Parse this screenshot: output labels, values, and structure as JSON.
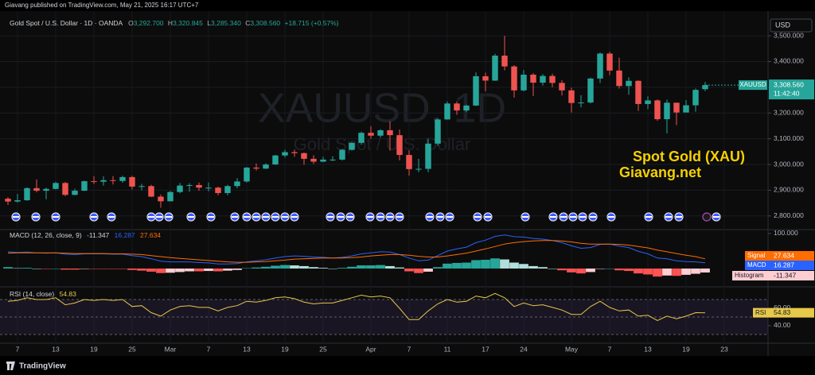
{
  "publish_note": "Giavang published on TradingView.com, May 21, 2025 16:17 UTC+7",
  "footer": "TradingView",
  "chart_data": [
    {
      "type": "candlestick",
      "title": "Gold Spot / U.S. Dollar · 1D · OANDA",
      "ohlc": [
        {
          "key": "O",
          "value": 3292.7,
          "label": "3,292.700"
        },
        {
          "key": "H",
          "value": 3320.845,
          "label": "3,320.845"
        },
        {
          "key": "L",
          "value": 3285.34,
          "label": "3,285.340"
        },
        {
          "key": "C",
          "value": 3308.56,
          "label": "3,308.560"
        }
      ],
      "change": "+18.715 (+0.57%)",
      "watermark": [
        "XAUUSD, 1D",
        "Gold Spot / U.S. Dollar"
      ],
      "annotations": [
        "Spot Gold (XAU)",
        "Giavang.net"
      ],
      "currency": "USD",
      "symbol": "XAUUSD",
      "last_price": {
        "value": 3308.56,
        "label": "3,308.560"
      },
      "countdown": "11:42:40",
      "up_color": "#26a69a",
      "down_color": "#ef5350",
      "grid": true,
      "xlim": [
        -0.5,
        79.5
      ],
      "xticks": [
        {
          "value": 1,
          "label": "7"
        },
        {
          "value": 5,
          "label": "13"
        },
        {
          "value": 9,
          "label": "19"
        },
        {
          "value": 13,
          "label": "25"
        },
        {
          "value": 17,
          "label": "Mar"
        },
        {
          "value": 21,
          "label": "7"
        },
        {
          "value": 25,
          "label": "13"
        },
        {
          "value": 29,
          "label": "19"
        },
        {
          "value": 33,
          "label": "25"
        },
        {
          "value": 38,
          "label": "Apr"
        },
        {
          "value": 42,
          "label": "7"
        },
        {
          "value": 46,
          "label": "11"
        },
        {
          "value": 50,
          "label": "17"
        },
        {
          "value": 54,
          "label": "24"
        },
        {
          "value": 59,
          "label": "May"
        },
        {
          "value": 63,
          "label": "7"
        },
        {
          "value": 67,
          "label": "13"
        },
        {
          "value": 71,
          "label": "19"
        },
        {
          "value": 75,
          "label": "23"
        }
      ],
      "ylim": [
        2750,
        3596
      ],
      "yticks": [
        {
          "value": 3500,
          "label": "3,500.000"
        },
        {
          "value": 3400,
          "label": "3,400.000"
        },
        {
          "value": 3300,
          "label": "3,300.000"
        },
        {
          "value": 3200,
          "label": "3,200.000"
        },
        {
          "value": 3100,
          "label": "3,100.000"
        },
        {
          "value": 3000,
          "label": "3,000.000"
        },
        {
          "value": 2900,
          "label": "2,900.000"
        },
        {
          "value": 2800,
          "label": "2,800.000"
        }
      ],
      "open": [
        2867,
        2856,
        2861,
        2908,
        2898,
        2905,
        2928,
        2882,
        2898,
        2935,
        2933,
        2939,
        2936,
        2951,
        2914,
        2916,
        2875,
        2857,
        2893,
        2918,
        2920,
        2910,
        2910,
        2889,
        2916,
        2934,
        2988,
        2984,
        3000,
        3035,
        3048,
        3044,
        3022,
        3011,
        3019,
        3019,
        3057,
        3084,
        3123,
        3112,
        3133,
        3114,
        3037,
        2982,
        2983,
        3081,
        3175,
        3237,
        3210,
        3229,
        3343,
        3326,
        3423,
        3381,
        3288,
        3349,
        3318,
        3344,
        3317,
        3288,
        3239,
        3241,
        3334,
        3431,
        3365,
        3305,
        3325,
        3235,
        3249,
        3176,
        3240,
        3202,
        3230,
        3292.7
      ],
      "high": [
        2873,
        2886,
        2911,
        2942,
        2910,
        2933,
        2932,
        2906,
        2937,
        2955,
        2954,
        2955,
        2956,
        2956,
        2925,
        2921,
        2883,
        2897,
        2928,
        2927,
        2930,
        2930,
        2914,
        2921,
        2947,
        2990,
        3004,
        3005,
        3038,
        3057,
        3058,
        3047,
        3036,
        3030,
        3032,
        3060,
        3087,
        3128,
        3149,
        3137,
        3168,
        3136,
        3055,
        3022,
        3100,
        3180,
        3245,
        3245,
        3232,
        3358,
        3357,
        3430,
        3500,
        3386,
        3367,
        3355,
        3351,
        3353,
        3328,
        3299,
        3269,
        3337,
        3435,
        3438,
        3415,
        3339,
        3327,
        3265,
        3253,
        3252,
        3240,
        3250,
        3295,
        3320.845
      ],
      "low": [
        2843,
        2852,
        2859,
        2892,
        2865,
        2903,
        2877,
        2880,
        2897,
        2924,
        2918,
        2922,
        2929,
        2903,
        2900,
        2873,
        2832,
        2857,
        2888,
        2894,
        2898,
        2896,
        2880,
        2880,
        2907,
        2930,
        2976,
        2982,
        2999,
        3027,
        3030,
        2999,
        3002,
        3009,
        3013,
        3015,
        3054,
        3076,
        3100,
        3105,
        3054,
        3016,
        2957,
        2970,
        2970,
        3073,
        3174,
        3193,
        3203,
        3228,
        3284,
        3325,
        3366,
        3260,
        3284,
        3266,
        3307,
        3300,
        3268,
        3202,
        3222,
        3237,
        3317,
        3347,
        3295,
        3271,
        3208,
        3215,
        3170,
        3121,
        3153,
        3205,
        3205,
        3285.34
      ],
      "close": [
        2856,
        2861,
        2908,
        2898,
        2905,
        2928,
        2882,
        2898,
        2935,
        2933,
        2939,
        2936,
        2951,
        2914,
        2916,
        2875,
        2857,
        2893,
        2918,
        2920,
        2910,
        2910,
        2889,
        2916,
        2934,
        2988,
        2984,
        3000,
        3035,
        3048,
        3044,
        3022,
        3011,
        3019,
        3019,
        3057,
        3084,
        3123,
        3112,
        3133,
        3114,
        3037,
        2982,
        2983,
        3081,
        3175,
        3237,
        3210,
        3229,
        3343,
        3326,
        3423,
        3381,
        3288,
        3349,
        3318,
        3344,
        3317,
        3288,
        3239,
        3241,
        3334,
        3431,
        3365,
        3305,
        3325,
        3235,
        3249,
        3176,
        3240,
        3202,
        3230,
        3289.845,
        3308.56
      ]
    },
    {
      "type": "macd",
      "title": "MACD (12, 26, close, 9)",
      "xlim": [
        -0.5,
        79.5
      ],
      "ylim": [
        -50,
        109
      ],
      "yticks": [
        {
          "value": 100,
          "label": "100.000"
        }
      ],
      "series": [
        {
          "name": "Histogram",
          "colors": [
            "#26a69a",
            "#b2dfdb",
            "#ff5252",
            "#ffcdd2"
          ],
          "values": [
            4,
            1,
            2,
            0,
            -1,
            0,
            -3,
            -3,
            -1,
            -1,
            -1,
            -1,
            -1,
            -4,
            -6,
            -9,
            -13,
            -12,
            -10,
            -8,
            -8,
            -7,
            -8,
            -6,
            -4,
            1,
            3,
            5,
            8,
            10,
            9,
            7,
            4,
            2,
            0,
            2,
            5,
            9,
            9,
            10,
            7,
            3,
            -8,
            -13,
            -9,
            4,
            14,
            16,
            17,
            24,
            25,
            29,
            26,
            17,
            13,
            7,
            4,
            0,
            -5,
            -11,
            -14,
            -10,
            -1,
            0,
            -5,
            -7,
            -14,
            -17,
            -23,
            -20,
            -21,
            -18,
            -15,
            -11.347
          ]
        },
        {
          "name": "MACD",
          "color": "#2962ff",
          "values": [
            48,
            46,
            47,
            45,
            44,
            45,
            41,
            40,
            42,
            42,
            42,
            41,
            41,
            37,
            34,
            28,
            21,
            19,
            19,
            19,
            17,
            16,
            13,
            13,
            14,
            19,
            22,
            25,
            30,
            34,
            36,
            35,
            33,
            32,
            30,
            32,
            36,
            42,
            45,
            48,
            47,
            40,
            30,
            22,
            24,
            37,
            50,
            56,
            61,
            74,
            81,
            92,
            96,
            91,
            90,
            86,
            84,
            80,
            74,
            65,
            58,
            60,
            69,
            70,
            64,
            60,
            49,
            42,
            30,
            28,
            22,
            20,
            19,
            16.287
          ]
        },
        {
          "name": "Signal",
          "color": "#ff6d00",
          "values": [
            44,
            45,
            45,
            45,
            45,
            45,
            44,
            43,
            43,
            43,
            43,
            42,
            42,
            41,
            40,
            37,
            34,
            31,
            29,
            27,
            25,
            23,
            21,
            19,
            18,
            18,
            19,
            20,
            22,
            24,
            27,
            28,
            29,
            30,
            30,
            30,
            31,
            33,
            36,
            38,
            40,
            40,
            38,
            35,
            33,
            33,
            36,
            40,
            44,
            50,
            56,
            63,
            70,
            74,
            77,
            79,
            80,
            80,
            79,
            76,
            72,
            70,
            70,
            70,
            69,
            67,
            63,
            59,
            53,
            48,
            43,
            38,
            34,
            27.634
          ]
        }
      ]
    },
    {
      "type": "rsi",
      "title": "RSI (14, close)",
      "xlim": [
        -0.5,
        79.5
      ],
      "ylim": [
        20,
        83.6
      ],
      "yticks": [
        {
          "value": 60,
          "label": "60.00"
        },
        {
          "value": 40,
          "label": "40.00"
        }
      ],
      "bands": [
        70,
        50,
        30
      ],
      "band_color": "#7e57c2",
      "series": [
        {
          "name": "RSI",
          "color": "#e6c84a",
          "values": [
            68,
            69,
            72,
            70,
            70,
            72,
            64,
            66,
            70,
            69,
            70,
            69,
            70,
            62,
            63,
            55,
            51,
            58,
            62,
            63,
            61,
            61,
            57,
            61,
            63,
            68,
            67,
            69,
            72,
            73,
            71,
            67,
            65,
            66,
            66,
            69,
            72,
            75,
            73,
            74,
            72,
            60,
            47,
            47,
            57,
            65,
            70,
            67,
            68,
            74,
            72,
            77,
            72,
            62,
            66,
            63,
            64,
            61,
            58,
            53,
            53,
            62,
            68,
            61,
            57,
            58,
            51,
            52,
            46,
            51,
            48,
            51,
            55,
            54.83
          ]
        }
      ]
    }
  ]
}
